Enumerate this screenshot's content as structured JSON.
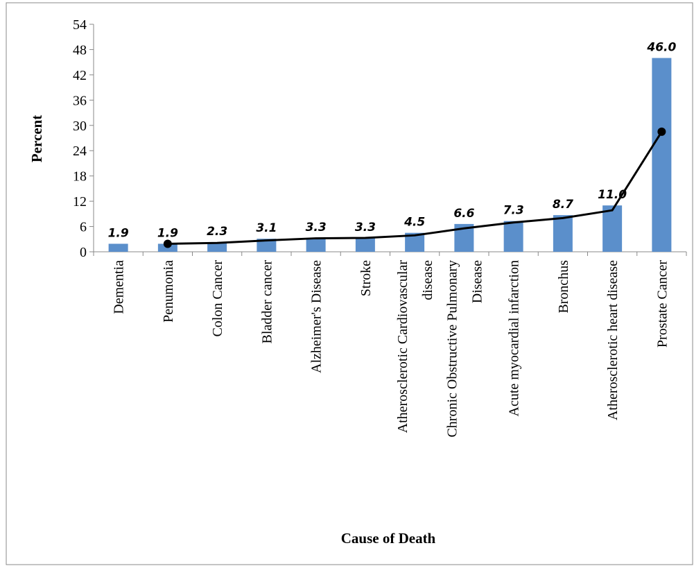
{
  "chart_data": {
    "type": "bar",
    "x_label": "Cause of Death",
    "y_label": "Percent",
    "categories": [
      [
        "Dementia"
      ],
      [
        "Penumonia"
      ],
      [
        "Colon Cancer"
      ],
      [
        "Bladder cancer"
      ],
      [
        "Alzheimer's Disease"
      ],
      [
        "Stroke"
      ],
      [
        "Atherosclerotic Cardiovascular",
        "disease"
      ],
      [
        "Chronic Obstructive  Pulmonary",
        "Disease"
      ],
      [
        "Acute myocardial infarction"
      ],
      [
        "Bronchus"
      ],
      [
        "Atherosclerotic heart disease"
      ],
      [
        "Prostate Cancer"
      ]
    ],
    "series": [
      {
        "type": "bar",
        "color": "#5b8fcb",
        "values": [
          1.9,
          1.9,
          2.3,
          3.1,
          3.3,
          3.3,
          4.5,
          6.6,
          7.3,
          8.7,
          11.0,
          46.0
        ],
        "value_labels": [
          "1.9",
          "1.9",
          "2.3",
          "3.1",
          "3.3",
          "3.3",
          "4.5",
          "6.6",
          "7.3",
          "8.7",
          "11.0",
          "46.0"
        ]
      },
      {
        "type": "line",
        "color": "#000000",
        "values": [
          null,
          1.9,
          2.1,
          2.7,
          3.2,
          3.3,
          3.9,
          5.55,
          6.95,
          8.0,
          9.85,
          28.5
        ]
      }
    ],
    "ylim": [
      0,
      54
    ],
    "yticks": [
      0,
      6,
      12,
      18,
      24,
      30,
      36,
      42,
      48,
      54
    ]
  }
}
